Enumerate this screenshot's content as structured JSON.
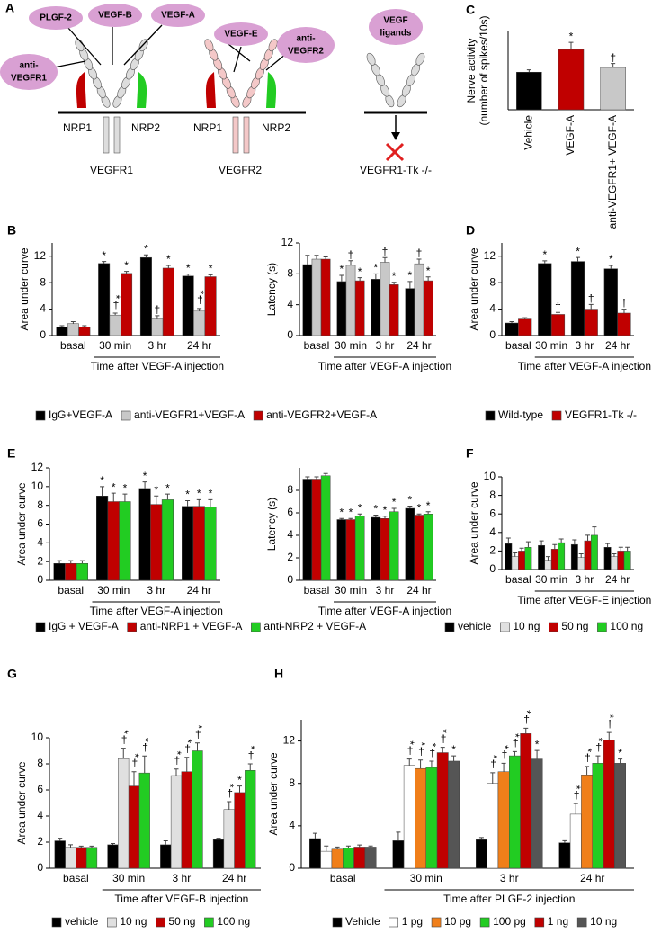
{
  "diagram": {
    "panel": "A",
    "ovals": {
      "plgf2": "PLGF-2",
      "vegfb": "VEGF-B",
      "vegfa": "VEGF-A",
      "vegfe": "VEGF-E",
      "anti_vegfr2": [
        "anti-",
        "VEGFR2"
      ],
      "anti_vegfr1": [
        "anti-",
        "VEGFR1"
      ],
      "ligands": [
        "VEGF",
        "ligands"
      ]
    },
    "labels": {
      "nrp1_a": "NRP1",
      "nrp2_a": "NRP2",
      "vegfr1": "VEGFR1",
      "nrp1_b": "NRP1",
      "nrp2_b": "NRP2",
      "vegfr2": "VEGFR2",
      "tk": "VEGFR1-Tk -/-"
    }
  },
  "chart_data": [
    {
      "type": "bar",
      "panel": "C",
      "ylabel": [
        "Nerve activity",
        "(number of spikes/10s)"
      ],
      "categories": [
        "Vehicle",
        "VEGF-A",
        "anti-VEGFR1+ VEGF-A"
      ],
      "ylim": [
        0,
        100
      ],
      "series": [
        {
          "colors": [
            "#000000",
            "#c00000",
            "#c8c8c8"
          ],
          "values": [
            48,
            77,
            54
          ],
          "errors": [
            3,
            9,
            5
          ],
          "marks": [
            null,
            "*",
            "†"
          ]
        }
      ]
    },
    {
      "type": "bar",
      "panel": "B",
      "ylabel": "Area under curve",
      "xlabel": "Time after VEGF-A injection",
      "categories": [
        "basal",
        "30 min",
        "3 hr",
        "24 hr"
      ],
      "ylim": [
        0,
        14
      ],
      "yticks": [
        0,
        4,
        8,
        12
      ],
      "series": [
        {
          "name": "IgG+VEGF-A",
          "color": "#000000",
          "values": [
            1.3,
            10.9,
            11.8,
            9.0
          ],
          "errors": [
            0.2,
            0.3,
            0.4,
            0.3
          ],
          "marks": [
            null,
            "*",
            "*",
            "*"
          ]
        },
        {
          "name": "anti-VEGFR1+VEGF-A",
          "color": "#c8c8c8",
          "values": [
            1.8,
            3.1,
            2.5,
            3.7
          ],
          "errors": [
            0.3,
            0.3,
            0.5,
            0.4
          ],
          "marks": [
            null,
            "*†",
            "†",
            "*†"
          ]
        },
        {
          "name": "anti-VEGFR2+VEGF-A",
          "color": "#c00000",
          "values": [
            1.3,
            9.4,
            10.2,
            8.9
          ],
          "errors": [
            0.2,
            0.3,
            0.4,
            0.3
          ],
          "marks": [
            null,
            "*",
            "*",
            "*"
          ]
        }
      ]
    },
    {
      "type": "bar",
      "ylabel": "Latency (s)",
      "xlabel": "Time after VEGF-A injection",
      "categories": [
        "basal",
        "30 min",
        "3 hr",
        "24 hr"
      ],
      "ylim": [
        0,
        12
      ],
      "yticks": [
        0,
        4,
        8,
        12
      ],
      "series": [
        {
          "color": "#000000",
          "values": [
            9.2,
            7.0,
            7.3,
            6.1
          ],
          "errors": [
            1.2,
            0.8,
            0.7,
            0.9
          ],
          "marks": [
            null,
            "*",
            "*",
            "*"
          ]
        },
        {
          "color": "#c8c8c8",
          "values": [
            9.9,
            9.1,
            9.5,
            9.3
          ],
          "errors": [
            0.5,
            0.6,
            0.6,
            0.6
          ],
          "marks": [
            null,
            "†",
            "†",
            "†"
          ]
        },
        {
          "color": "#c00000",
          "values": [
            9.9,
            7.1,
            6.6,
            7.1
          ],
          "errors": [
            0.3,
            0.4,
            0.3,
            0.5
          ],
          "marks": [
            null,
            "*",
            "*",
            "*"
          ]
        }
      ]
    },
    {
      "type": "bar",
      "panel": "D",
      "ylabel": "Area under curve",
      "xlabel": "Time after VEGF-A injection",
      "categories": [
        "basal",
        "30 min",
        "3 hr",
        "24 hr"
      ],
      "ylim": [
        0,
        14
      ],
      "yticks": [
        0,
        4,
        8,
        12
      ],
      "series": [
        {
          "name": "Wild-type",
          "color": "#000000",
          "values": [
            1.9,
            10.9,
            11.2,
            10.1
          ],
          "errors": [
            0.2,
            0.4,
            0.6,
            0.5
          ],
          "marks": [
            null,
            "*",
            "*",
            "*"
          ]
        },
        {
          "name": "VEGFR1-Tk -/-",
          "color": "#c00000",
          "values": [
            2.5,
            3.2,
            4.0,
            3.4
          ],
          "errors": [
            0.2,
            0.3,
            0.7,
            0.6
          ],
          "marks": [
            null,
            "†",
            "†",
            "†"
          ]
        }
      ]
    },
    {
      "type": "bar",
      "panel": "E",
      "ylabel": "Area under curve",
      "xlabel": "Time after VEGF-A injection",
      "categories": [
        "basal",
        "30 min",
        "3 hr",
        "24 hr"
      ],
      "ylim": [
        0,
        12
      ],
      "yticks": [
        0,
        2,
        4,
        6,
        8,
        10,
        12
      ],
      "series": [
        {
          "name": "IgG + VEGF-A",
          "color": "#000000",
          "values": [
            1.8,
            9.0,
            9.8,
            7.9
          ],
          "errors": [
            0.3,
            1.0,
            0.7,
            0.6
          ],
          "marks": [
            null,
            "*",
            "*",
            "*"
          ]
        },
        {
          "name": "anti-NRP1 + VEGF-A",
          "color": "#c00000",
          "values": [
            1.8,
            8.4,
            8.1,
            7.9
          ],
          "errors": [
            0.3,
            0.9,
            0.9,
            0.7
          ],
          "marks": [
            null,
            "*",
            "*",
            "*"
          ]
        },
        {
          "name": "anti-NRP2 + VEGF-A",
          "color": "#22cc22",
          "values": [
            1.8,
            8.4,
            8.6,
            7.8
          ],
          "errors": [
            0.3,
            0.8,
            0.6,
            0.8
          ],
          "marks": [
            null,
            "*",
            "*",
            "*"
          ]
        }
      ]
    },
    {
      "type": "bar",
      "ylabel": "Latency (s)",
      "xlabel": "Time after VEGF-A injection",
      "categories": [
        "basal",
        "30 min",
        "3 hr",
        "24 hr"
      ],
      "ylim": [
        0,
        10
      ],
      "yticks": [
        0,
        2,
        4,
        6,
        8
      ],
      "series": [
        {
          "color": "#000000",
          "values": [
            9.0,
            5.4,
            5.6,
            6.4
          ],
          "errors": [
            0.2,
            0.1,
            0.2,
            0.2
          ],
          "marks": [
            null,
            "*",
            "*",
            "*"
          ]
        },
        {
          "color": "#c00000",
          "values": [
            9.0,
            5.4,
            5.5,
            5.8
          ],
          "errors": [
            0.2,
            0.1,
            0.2,
            0.1
          ],
          "marks": [
            null,
            "*",
            "*",
            "*"
          ]
        },
        {
          "color": "#22cc22",
          "values": [
            9.3,
            5.7,
            6.1,
            5.9
          ],
          "errors": [
            0.2,
            0.2,
            0.3,
            0.2
          ],
          "marks": [
            null,
            "*",
            "*",
            "*"
          ]
        }
      ]
    },
    {
      "type": "bar",
      "panel": "F",
      "ylabel": "Area under curve",
      "xlabel": "Time after VEGF-E injection",
      "categories": [
        "basal",
        "30 min",
        "3 hr",
        "24 hr"
      ],
      "ylim": [
        0,
        10
      ],
      "yticks": [
        0,
        2,
        4,
        6,
        8,
        10
      ],
      "series": [
        {
          "name": "vehicle",
          "color": "#000000",
          "values": [
            2.8,
            2.6,
            2.7,
            2.4
          ],
          "errors": [
            0.6,
            0.5,
            0.5,
            0.4
          ],
          "marks": [
            null,
            null,
            null,
            null
          ]
        },
        {
          "name": "10 ng",
          "color": "#e0e0e0",
          "values": [
            1.4,
            1.0,
            1.3,
            1.4
          ],
          "errors": [
            0.4,
            0.4,
            0.4,
            0.3
          ],
          "marks": [
            null,
            null,
            null,
            null
          ]
        },
        {
          "name": "50 ng",
          "color": "#c00000",
          "values": [
            2.0,
            2.2,
            3.1,
            2.0
          ],
          "errors": [
            0.3,
            0.5,
            0.6,
            0.4
          ],
          "marks": [
            null,
            null,
            null,
            null
          ]
        },
        {
          "name": "100 ng",
          "color": "#22cc22",
          "values": [
            2.4,
            2.9,
            3.7,
            2.0
          ],
          "errors": [
            0.6,
            0.4,
            0.9,
            0.4
          ],
          "marks": [
            null,
            null,
            null,
            null
          ]
        }
      ]
    },
    {
      "type": "bar",
      "panel": "G",
      "ylabel": "Area under curve",
      "xlabel": "Time after VEGF-B injection",
      "categories": [
        "basal",
        "30 min",
        "3 hr",
        "24 hr"
      ],
      "ylim": [
        0,
        10
      ],
      "yticks": [
        0,
        2,
        4,
        6,
        8,
        10
      ],
      "series": [
        {
          "name": "vehicle",
          "color": "#000000",
          "values": [
            2.1,
            1.8,
            1.8,
            2.2
          ],
          "errors": [
            0.2,
            0.1,
            0.3,
            0.1
          ],
          "marks": [
            null,
            null,
            null,
            null
          ]
        },
        {
          "name": "10 ng",
          "color": "#e0e0e0",
          "values": [
            1.6,
            8.4,
            7.1,
            4.5
          ],
          "errors": [
            0.2,
            0.8,
            0.5,
            0.6
          ],
          "marks": [
            null,
            "*†",
            "*†",
            "*†"
          ]
        },
        {
          "name": "50 ng",
          "color": "#c00000",
          "values": [
            1.6,
            6.3,
            7.4,
            5.8
          ],
          "errors": [
            0.1,
            1.1,
            1.1,
            0.5
          ],
          "marks": [
            null,
            "*†",
            "*†",
            "*"
          ]
        },
        {
          "name": "100 ng",
          "color": "#22cc22",
          "values": [
            1.6,
            7.3,
            9.0,
            7.5
          ],
          "errors": [
            0.1,
            1.3,
            0.6,
            0.5
          ],
          "marks": [
            null,
            "*†",
            "*†",
            "*†"
          ]
        }
      ]
    },
    {
      "type": "bar",
      "panel": "H",
      "ylabel": "Area under curve",
      "xlabel": "Time after PLGF-2 injection",
      "categories": [
        "basal",
        "30 min",
        "3 hr",
        "24 hr"
      ],
      "ylim": [
        0,
        14
      ],
      "yticks": [
        0,
        4,
        8,
        12
      ],
      "series": [
        {
          "name": "Vehicle",
          "color": "#000000",
          "values": [
            2.8,
            2.6,
            2.7,
            2.4
          ],
          "errors": [
            0.5,
            0.8,
            0.2,
            0.2
          ],
          "marks": [
            null,
            null,
            null,
            null
          ]
        },
        {
          "name": "1 pg",
          "color": "#ffffff",
          "values": [
            1.6,
            9.7,
            8.0,
            5.1
          ],
          "errors": [
            0.5,
            0.6,
            1.0,
            1.0
          ],
          "marks": [
            null,
            "*†",
            "*†",
            "*†"
          ]
        },
        {
          "name": "10 pg",
          "color": "#f07f1a",
          "values": [
            1.8,
            9.4,
            9.1,
            8.8
          ],
          "errors": [
            0.2,
            0.8,
            0.8,
            0.8
          ],
          "marks": [
            null,
            "*†",
            "*†",
            "*†"
          ]
        },
        {
          "name": "100 pg",
          "color": "#22cc22",
          "values": [
            1.9,
            9.5,
            10.6,
            9.9
          ],
          "errors": [
            0.2,
            0.6,
            0.4,
            0.7
          ],
          "marks": [
            null,
            "*†",
            "*†",
            "*†"
          ]
        },
        {
          "name": "1 ng",
          "color": "#c00000",
          "values": [
            2.0,
            10.9,
            12.7,
            12.1
          ],
          "errors": [
            0.2,
            0.5,
            0.5,
            0.7
          ],
          "marks": [
            null,
            "*†",
            "*†",
            "*†"
          ]
        },
        {
          "name": "10 ng",
          "color": "#555555",
          "values": [
            2.0,
            10.1,
            10.3,
            9.9
          ],
          "errors": [
            0.1,
            0.5,
            0.8,
            0.4
          ],
          "marks": [
            null,
            "*",
            "*",
            "*"
          ]
        }
      ]
    }
  ]
}
